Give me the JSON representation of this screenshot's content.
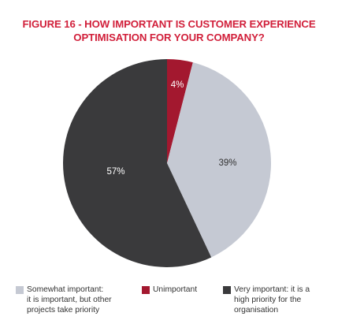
{
  "chart_data": {
    "type": "pie",
    "title": "FIGURE 16 - HOW IMPORTANT IS CUSTOMER EXPERIENCE OPTIMISATION FOR YOUR COMPANY?",
    "title_lines": [
      "FIGURE 16 - HOW IMPORTANT IS CUSTOMER EXPERIENCE",
      "OPTIMISATION FOR YOUR COMPANY?"
    ],
    "slices": [
      {
        "label": "Unimportant",
        "value": 4,
        "display": "4%",
        "color": "#a3182f",
        "label_color": "#ffffff"
      },
      {
        "label": "Somewhat important: it is important, but other projects take priority",
        "value": 39,
        "display": "39%",
        "color": "#c5c9d3",
        "label_color": "#333333"
      },
      {
        "label": "Very important: it is a high priority for the organisation",
        "value": 57,
        "display": "57%",
        "color": "#3a3a3c",
        "label_color": "#ffffff"
      }
    ],
    "legend": [
      {
        "lines": [
          "Somewhat important:",
          "it is important, but other",
          "projects take priority"
        ],
        "color": "#c5c9d3"
      },
      {
        "lines": [
          "Unimportant"
        ],
        "color": "#a3182f"
      },
      {
        "lines": [
          "Very important: it is a",
          "high priority for the",
          "organisation"
        ],
        "color": "#3a3a3c"
      }
    ],
    "legend_position": "bottom"
  }
}
